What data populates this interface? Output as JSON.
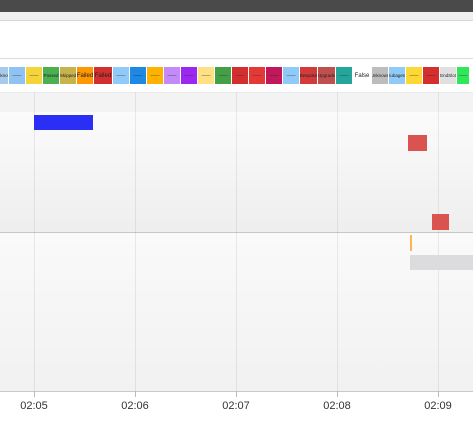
{
  "legend": [
    {
      "label": "Unknown",
      "color": "#a9cbea"
    },
    {
      "label": "——",
      "color": "#8ec3f3"
    },
    {
      "label": "——",
      "color": "#f5d33b"
    },
    {
      "label": "Passed",
      "color": "#4caf50"
    },
    {
      "label": "Skipped",
      "color": "#c8b24c"
    },
    {
      "label": "Failed",
      "color": "#ff9800"
    },
    {
      "label": "Failed",
      "color": "#d32f2f"
    },
    {
      "label": "——",
      "color": "#90caf9"
    },
    {
      "label": "——",
      "color": "#1e88e5"
    },
    {
      "label": "——",
      "color": "#ffb300"
    },
    {
      "label": "——",
      "color": "#c58af9"
    },
    {
      "label": "——",
      "color": "#9c27f0"
    },
    {
      "label": "——",
      "color": "#ffe082"
    },
    {
      "label": "——",
      "color": "#43a047"
    },
    {
      "label": "——",
      "color": "#d32f2f"
    },
    {
      "label": "——",
      "color": "#e53935"
    },
    {
      "label": "——",
      "color": "#c2185b"
    },
    {
      "label": "——",
      "color": "#90caf9"
    },
    {
      "label": "Bespoke",
      "color": "#d33a3a"
    },
    {
      "label": "Upgrade",
      "color": "#c0504d"
    },
    {
      "label": "——",
      "color": "#26a69a"
    },
    {
      "label": "False",
      "color": "#ffffff"
    },
    {
      "label": "Unknown",
      "color": "#bdbdbd"
    },
    {
      "label": "Subagent",
      "color": "#90caf9"
    },
    {
      "label": "——",
      "color": "#fdd835"
    },
    {
      "label": "——",
      "color": "#d32f2f"
    },
    {
      "label": "EndSlot",
      "color": "#e0e0e0"
    },
    {
      "label": "——",
      "color": "#2ee85a"
    }
  ],
  "lanes": [
    {
      "bars": [
        {
          "start": "02:05:00",
          "end": "02:05:35",
          "color": "#2b2ff5",
          "kind": "block"
        },
        {
          "start": "02:08:42",
          "end": "02:08:54",
          "color": "#d9534f",
          "kind": "square"
        },
        {
          "start": "02:08:56",
          "end": "02:09:06",
          "color": "#d9534f",
          "kind": "square"
        }
      ]
    },
    {
      "bars": [
        {
          "start": "02:08:43",
          "end": "02:08:44",
          "color": "#ffb74d",
          "kind": "marker"
        },
        {
          "start": "02:08:43",
          "end": "02:09:25",
          "color": "#dcdcdf",
          "kind": "bar"
        }
      ]
    }
  ],
  "axis": {
    "ticks": [
      "02:05",
      "02:06",
      "02:07",
      "02:08",
      "02:09"
    ]
  }
}
